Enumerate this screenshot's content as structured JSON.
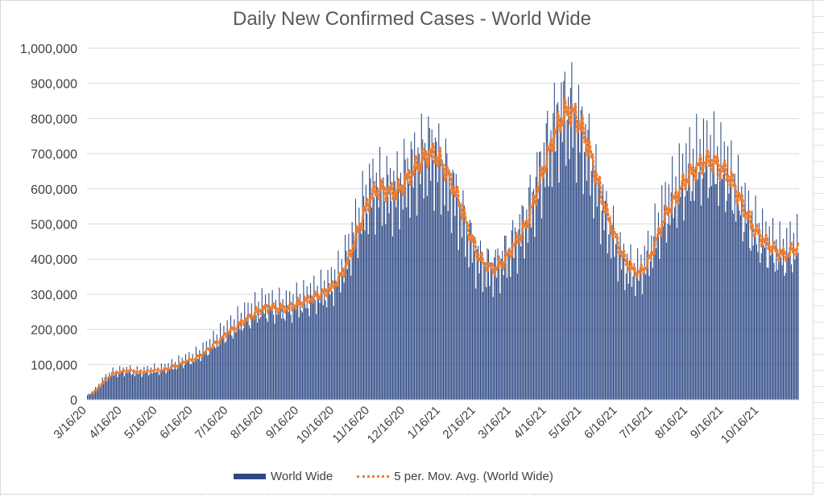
{
  "colors": {
    "bars": "#2e4a85",
    "moving_avg": "#ed7d31",
    "axis_text": "#404040",
    "gridline": "#d9d9d9"
  },
  "chart_data": {
    "type": "bar",
    "title": "Daily New Confirmed Cases - World Wide",
    "xlabel": "",
    "ylabel": "",
    "ylim": [
      0,
      1000000
    ],
    "y_ticks": [
      "0",
      "100,000",
      "200,000",
      "300,000",
      "400,000",
      "500,000",
      "600,000",
      "700,000",
      "800,000",
      "900,000",
      "1,000,000"
    ],
    "x_ticks": [
      "3/16/20",
      "4/16/20",
      "5/16/20",
      "6/16/20",
      "7/16/20",
      "8/16/20",
      "9/16/20",
      "10/16/20",
      "11/16/20",
      "12/16/20",
      "1/16/21",
      "2/16/21",
      "3/16/21",
      "4/16/21",
      "5/16/21",
      "6/16/21",
      "7/16/21",
      "8/16/21",
      "9/16/21",
      "10/16/21"
    ],
    "grid": true,
    "legend_position": "bottom",
    "series": [
      {
        "name": "World Wide",
        "kind": "bar",
        "weekly": {
          "x_start": "3/16/20",
          "interval_days": 7,
          "values": [
            12000,
            30000,
            58000,
            75000,
            80000,
            83000,
            78000,
            80000,
            84000,
            85000,
            92000,
            100000,
            110000,
            118000,
            130000,
            150000,
            170000,
            190000,
            205000,
            225000,
            240000,
            255000,
            265000,
            260000,
            260000,
            265000,
            275000,
            285000,
            295000,
            305000,
            320000,
            350000,
            400000,
            470000,
            540000,
            590000,
            600000,
            590000,
            590000,
            620000,
            650000,
            680000,
            700000,
            690000,
            650000,
            600000,
            540000,
            470000,
            410000,
            380000,
            370000,
            390000,
            420000,
            460000,
            500000,
            570000,
            650000,
            720000,
            790000,
            820000,
            810000,
            760000,
            690000,
            600000,
            520000,
            460000,
            400000,
            370000,
            360000,
            390000,
            450000,
            520000,
            560000,
            600000,
            640000,
            660000,
            680000,
            680000,
            660000,
            640000,
            590000,
            540000,
            490000,
            460000,
            440000,
            420000,
            410000,
            430000
          ]
        },
        "daily_peaks": [
          "1,000,000",
          "1,000,000",
          "1,000,000",
          "900,000",
          "885,000",
          "855,000"
        ]
      },
      {
        "name": "5 per. Mov. Avg. (World Wide)",
        "kind": "line",
        "style": "dotted"
      }
    ]
  }
}
